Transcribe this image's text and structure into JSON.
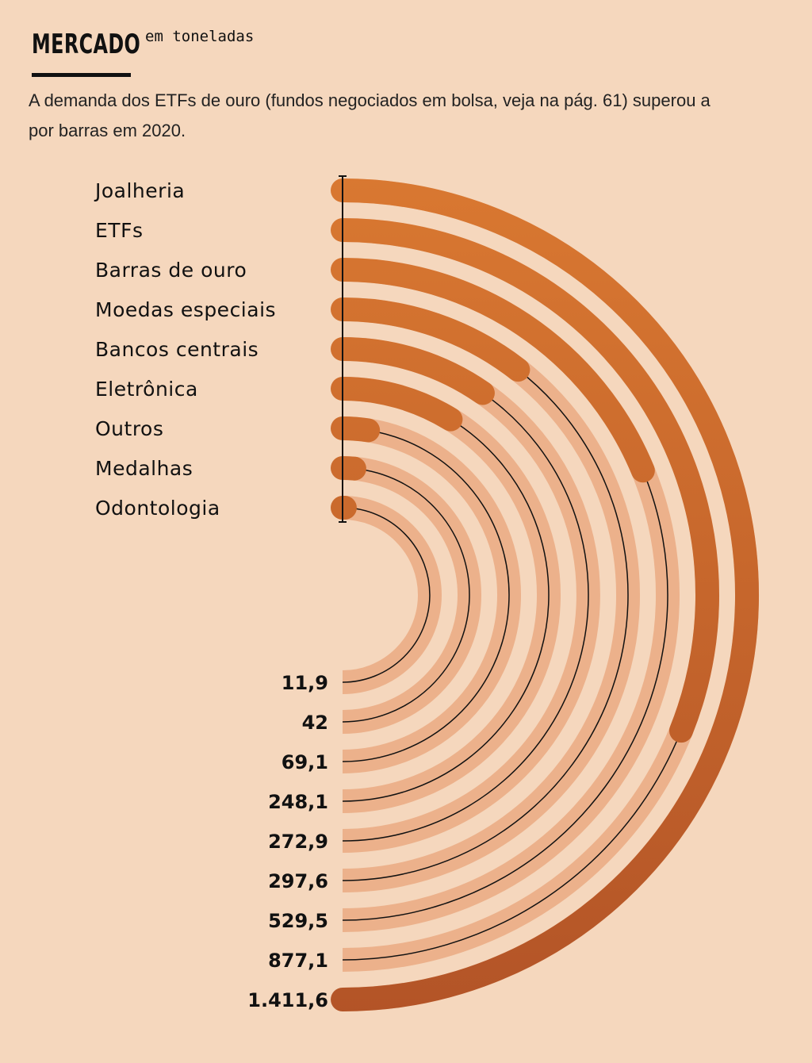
{
  "header": {
    "title": "MERCADO",
    "unit": "em toneladas",
    "subtitle": "A demanda dos ETFs de ouro (fundos negociados em bolsa, veja na pág. 61) superou a por barras em 2020."
  },
  "colors": {
    "background": "#f5d7bd",
    "track": "#ecb18b",
    "bar_top": "#d97831",
    "bar_bottom": "#b35427",
    "text": "#111111"
  },
  "chart_data": {
    "type": "radial-bar",
    "unit": "toneladas",
    "categories": [
      "Joalheria",
      "ETFs",
      "Barras de ouro",
      "Moedas especiais",
      "Bancos centrais",
      "Eletrônica",
      "Outros",
      "Medalhas",
      "Odontologia"
    ],
    "values": [
      1411.6,
      877.1,
      529.5,
      297.6,
      272.9,
      248.1,
      69.1,
      42,
      11.9
    ],
    "value_labels": [
      "1.411,6",
      "877,1",
      "529,5",
      "297,6",
      "272,9",
      "248,1",
      "69,1",
      "42",
      "11,9"
    ],
    "max": 1411.6
  }
}
